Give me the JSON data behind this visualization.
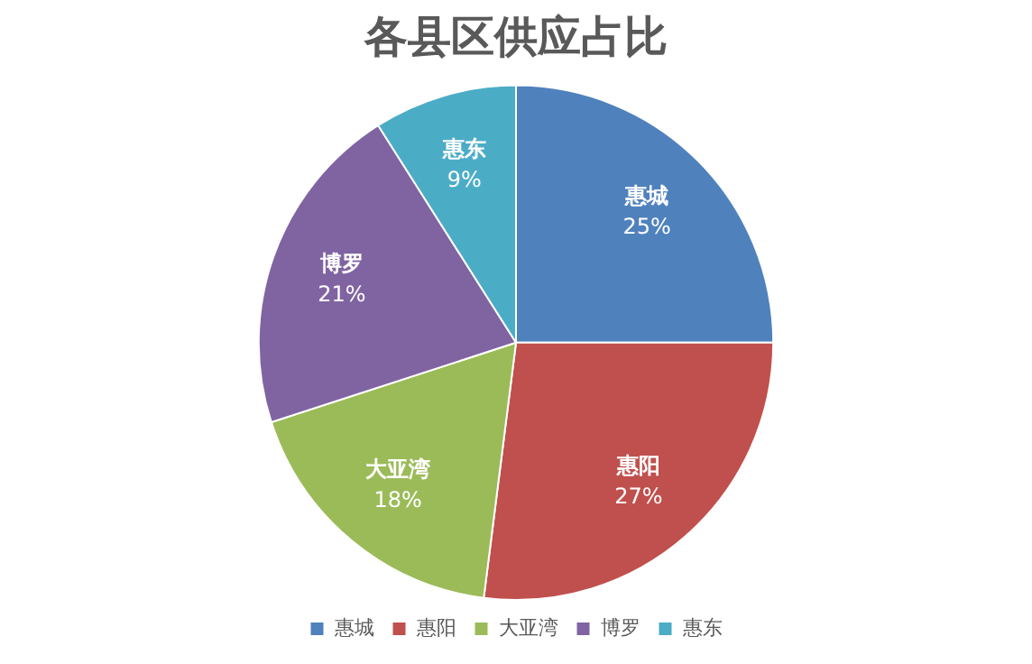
{
  "chart_data": {
    "type": "pie",
    "title": "各县区供应占比",
    "categories": [
      "惠城",
      "惠阳",
      "大亚湾",
      "博罗",
      "惠东"
    ],
    "values": [
      25,
      27,
      18,
      21,
      9
    ],
    "colors": [
      "#4f81bd",
      "#c0504d",
      "#9bbb59",
      "#8064a2",
      "#4bacc6"
    ],
    "value_labels": [
      "25%",
      "27%",
      "18%",
      "21%",
      "9%"
    ],
    "legend": "bottom"
  }
}
